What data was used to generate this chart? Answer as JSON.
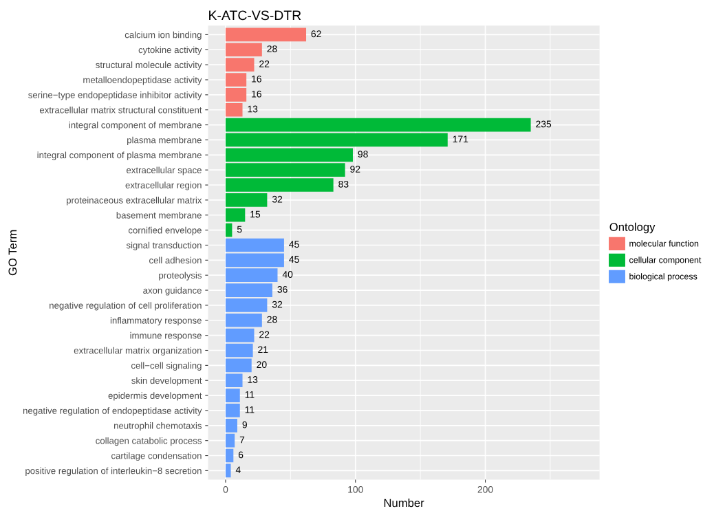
{
  "chart_data": {
    "type": "bar",
    "orientation": "horizontal",
    "title": "K-ATC-VS-DTR",
    "xlabel": "Number",
    "ylabel": "GO Term",
    "legend_title": "Ontology",
    "legend": "right",
    "grid": true,
    "data_labels": true,
    "categories": [
      "calcium ion binding",
      "cytokine activity",
      "structural molecule activity",
      "metalloendopeptidase activity",
      "serine−type endopeptidase inhibitor activity",
      "extracellular matrix structural constituent",
      "integral component of membrane",
      "plasma membrane",
      "integral component of plasma membrane",
      "extracellular space",
      "extracellular region",
      "proteinaceous extracellular matrix",
      "basement membrane",
      "cornified envelope",
      "signal transduction",
      "cell adhesion",
      "proteolysis",
      "axon guidance",
      "negative regulation of cell proliferation",
      "inflammatory response",
      "immune response",
      "extracellular matrix organization",
      "cell−cell signaling",
      "skin development",
      "epidermis development",
      "negative regulation of endopeptidase activity",
      "neutrophil chemotaxis",
      "collagen catabolic process",
      "cartilage condensation",
      "positive regulation of interleukin−8 secretion"
    ],
    "series": [
      {
        "name": "molecular function",
        "color": "#f8766d",
        "values": [
          62,
          28,
          22,
          16,
          16,
          13,
          null,
          null,
          null,
          null,
          null,
          null,
          null,
          null,
          null,
          null,
          null,
          null,
          null,
          null,
          null,
          null,
          null,
          null,
          null,
          null,
          null,
          null,
          null,
          null
        ]
      },
      {
        "name": "cellular component",
        "color": "#00ba38",
        "values": [
          null,
          null,
          null,
          null,
          null,
          null,
          235,
          171,
          98,
          92,
          83,
          32,
          15,
          5,
          null,
          null,
          null,
          null,
          null,
          null,
          null,
          null,
          null,
          null,
          null,
          null,
          null,
          null,
          null,
          null
        ]
      },
      {
        "name": "biological process",
        "color": "#619cff",
        "values": [
          null,
          null,
          null,
          null,
          null,
          null,
          null,
          null,
          null,
          null,
          null,
          null,
          null,
          null,
          45,
          45,
          40,
          36,
          32,
          28,
          22,
          21,
          20,
          13,
          11,
          11,
          9,
          7,
          6,
          4
        ]
      }
    ],
    "xlim": [
      -13.5,
      288
    ],
    "xticks": [
      0,
      100,
      200
    ]
  }
}
